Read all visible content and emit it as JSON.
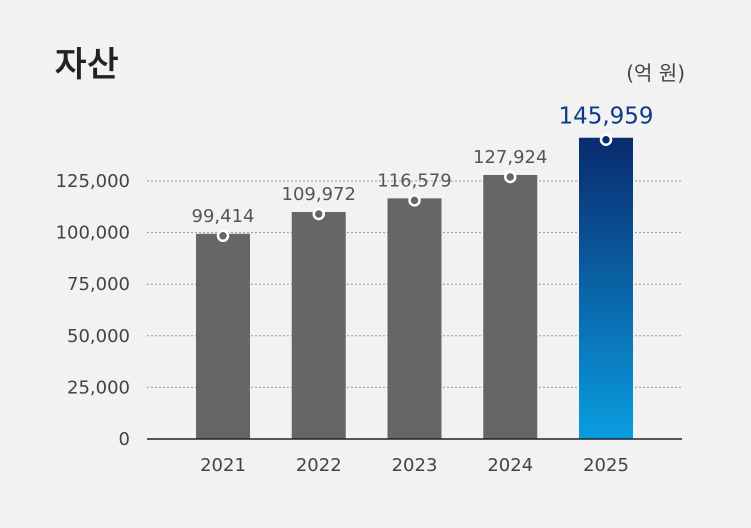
{
  "header": {
    "title": "자산",
    "unit": "(억 원)"
  },
  "colors": {
    "bar": "#666666",
    "highlight_top": "#0a2a6e",
    "highlight_bottom": "#0a9de0",
    "grid": "#999999",
    "axis": "#222222",
    "marker_stroke": "#ffffff"
  },
  "chart_data": {
    "type": "bar",
    "title": "자산",
    "categories": [
      "2021",
      "2022",
      "2023",
      "2024",
      "2025"
    ],
    "values": [
      99414,
      109972,
      116579,
      127924,
      145959
    ],
    "value_labels": [
      "99,414",
      "109,972",
      "116,579",
      "127,924",
      "145,959"
    ],
    "highlight_index": 4,
    "y_ticks": [
      0,
      25000,
      50000,
      75000,
      100000,
      125000
    ],
    "y_tick_labels": [
      "0",
      "25,000",
      "50,000",
      "75,000",
      "100,000",
      "125,000"
    ],
    "ylim": [
      0,
      125000
    ],
    "grid": true
  }
}
